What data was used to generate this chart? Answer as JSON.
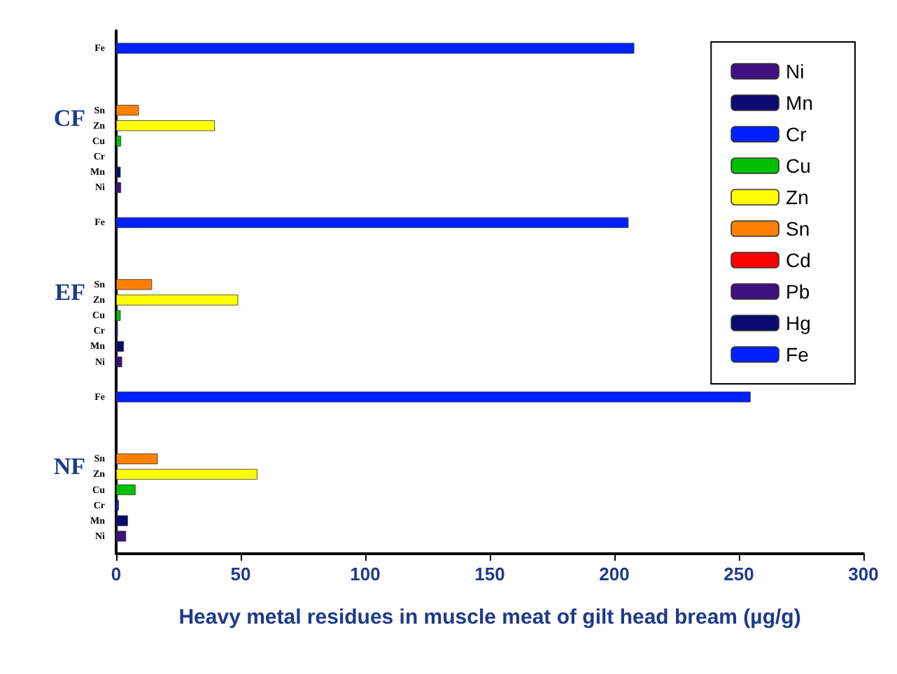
{
  "chart_data": {
    "type": "bar",
    "orientation": "horizontal",
    "xlabel": "Heavy metal residues in muscle meat of gilt head bream (µg/g)",
    "categories": [
      "CF",
      "EF",
      "NF"
    ],
    "series": [
      {
        "name": "Ni",
        "color": "#3f1080",
        "values": [
          2,
          2.4,
          4
        ]
      },
      {
        "name": "Mn",
        "color": "#0a0a70",
        "values": [
          1.8,
          3.1,
          4.7
        ]
      },
      {
        "name": "Cr",
        "color": "#0020ff",
        "values": [
          0,
          0.7,
          1.1
        ]
      },
      {
        "name": "Cu",
        "color": "#00c000",
        "values": [
          2,
          1.8,
          7.8
        ]
      },
      {
        "name": "Zn",
        "color": "#ffff00",
        "values": [
          39.6,
          49,
          56.7
        ]
      },
      {
        "name": "Sn",
        "color": "#ff8000",
        "values": [
          9.1,
          14.4,
          16.7
        ]
      },
      {
        "name": "Cd",
        "color": "#ff0000",
        "values": [
          null,
          null,
          null
        ]
      },
      {
        "name": "Pb",
        "color": "#3f1080",
        "values": [
          null,
          null,
          null
        ]
      },
      {
        "name": "Hg",
        "color": "#0a0a70",
        "values": [
          null,
          null,
          null
        ]
      },
      {
        "name": "Fe",
        "color": "#0020ff",
        "values": [
          208,
          205.7,
          254.7
        ]
      }
    ],
    "xlim": [
      0,
      300
    ],
    "xticks": [
      0,
      50,
      100,
      150,
      200,
      250,
      300
    ],
    "grid": false,
    "legend": "top right"
  }
}
